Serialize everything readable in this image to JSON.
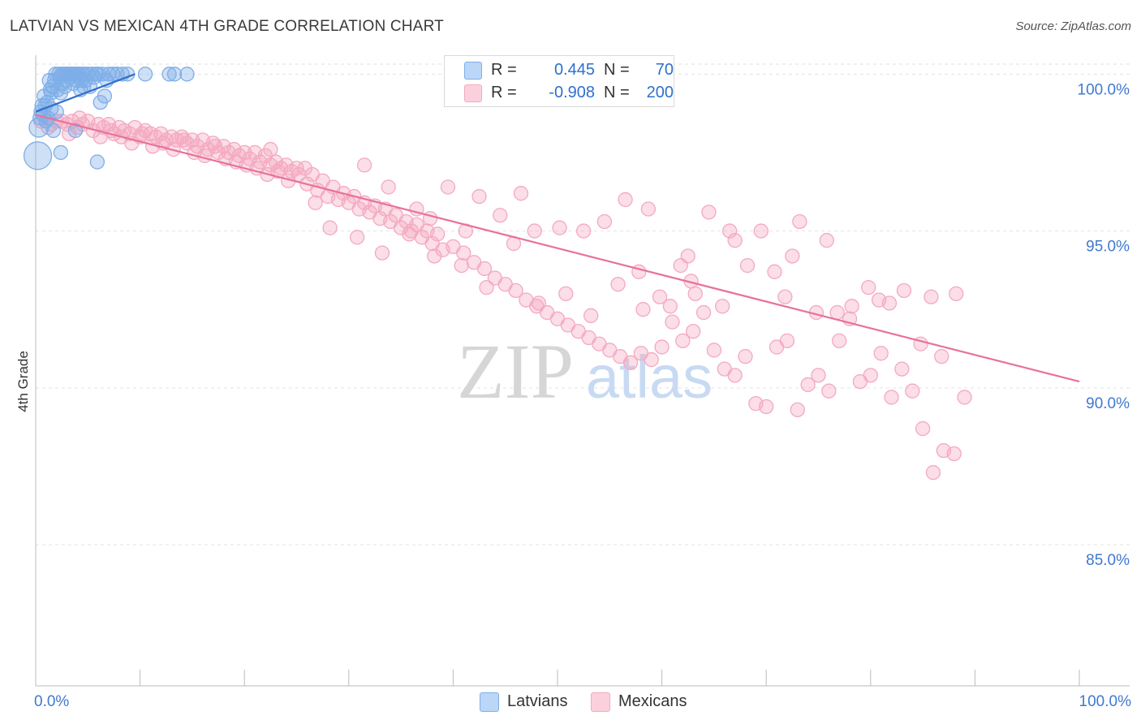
{
  "title": "LATVIAN VS MEXICAN 4TH GRADE CORRELATION CHART",
  "source": "Source: ZipAtlas.com",
  "watermark": {
    "zip": "ZIP",
    "atlas": "atlas"
  },
  "legend": {
    "rows": [
      {
        "r_label": "R =",
        "r_value": "0.445",
        "n_label": "N =",
        "n_value": "70",
        "color": "#7eaee8",
        "fill": "#bcd6f7",
        "text_color": "#2f6fcc"
      },
      {
        "r_label": "R =",
        "r_value": "-0.908",
        "n_label": "N =",
        "n_value": "200",
        "color": "#f4a9c0",
        "fill": "#fbd0dc",
        "text_color": "#2f6fcc"
      }
    ]
  },
  "chart_data": {
    "type": "scatter",
    "title": "LATVIAN VS MEXICAN 4TH GRADE CORRELATION CHART",
    "ylabel": "4th Grade",
    "xlabel": "",
    "xlim": [
      0,
      100
    ],
    "ylim": [
      80.5,
      100.5
    ],
    "x_tick_labels": [
      "0.0%",
      "100.0%"
    ],
    "y_ticks": [
      85,
      90,
      95,
      100
    ],
    "y_tick_labels": [
      "85.0%",
      "90.0%",
      "95.0%",
      "100.0%"
    ],
    "grid": true,
    "legend_position": "top-center",
    "series": [
      {
        "name": "Latvians",
        "color": "#7eaee8",
        "line_color": "#2f6fcc",
        "trend": {
          "x": [
            0,
            9.5
          ],
          "y": [
            98.8,
            100.0
          ]
        },
        "points": [
          [
            0.2,
            97.4,
            20
          ],
          [
            0.3,
            98.3,
            14
          ],
          [
            0.4,
            98.6,
            10
          ],
          [
            0.5,
            98.8,
            10
          ],
          [
            0.6,
            99.0,
            10
          ],
          [
            0.7,
            98.7,
            10
          ],
          [
            0.8,
            99.3,
            10
          ],
          [
            1.0,
            98.5,
            10
          ],
          [
            1.1,
            99.1,
            10
          ],
          [
            1.2,
            98.6,
            10
          ],
          [
            1.3,
            99.8,
            10
          ],
          [
            1.4,
            99.5,
            10
          ],
          [
            1.5,
            98.9,
            10
          ],
          [
            1.6,
            99.6,
            10
          ],
          [
            1.7,
            98.2,
            10
          ],
          [
            1.8,
            99.8,
            10
          ],
          [
            1.9,
            100.0,
            10
          ],
          [
            2.0,
            98.8,
            10
          ],
          [
            2.1,
            99.5,
            10
          ],
          [
            2.2,
            100.0,
            10
          ],
          [
            2.3,
            99.9,
            10
          ],
          [
            2.4,
            99.4,
            10
          ],
          [
            2.5,
            100.0,
            10
          ],
          [
            2.6,
            99.7,
            10
          ],
          [
            2.7,
            100.0,
            10
          ],
          [
            2.8,
            99.6,
            10
          ],
          [
            2.9,
            100.0,
            10
          ],
          [
            3.0,
            99.8,
            10
          ],
          [
            3.1,
            100.0,
            10
          ],
          [
            3.2,
            100.0,
            10
          ],
          [
            3.3,
            99.9,
            10
          ],
          [
            3.4,
            100.0,
            10
          ],
          [
            3.5,
            100.0,
            10
          ],
          [
            3.6,
            99.7,
            10
          ],
          [
            3.7,
            100.0,
            10
          ],
          [
            3.8,
            100.0,
            10
          ],
          [
            3.9,
            99.8,
            10
          ],
          [
            4.0,
            100.0,
            10
          ],
          [
            4.1,
            99.9,
            10
          ],
          [
            4.2,
            100.0,
            10
          ],
          [
            4.3,
            99.5,
            10
          ],
          [
            4.4,
            99.8,
            10
          ],
          [
            4.5,
            100.0,
            10
          ],
          [
            4.6,
            99.6,
            10
          ],
          [
            4.7,
            100.0,
            10
          ],
          [
            4.8,
            99.8,
            10
          ],
          [
            5.0,
            100.0,
            10
          ],
          [
            5.2,
            99.6,
            10
          ],
          [
            5.4,
            100.0,
            10
          ],
          [
            5.6,
            99.9,
            10
          ],
          [
            5.8,
            100.0,
            10
          ],
          [
            6.0,
            100.0,
            10
          ],
          [
            6.2,
            99.1,
            10
          ],
          [
            6.4,
            100.0,
            10
          ],
          [
            6.6,
            99.3,
            10
          ],
          [
            6.8,
            99.8,
            10
          ],
          [
            7.0,
            100.0,
            10
          ],
          [
            7.4,
            100.0,
            10
          ],
          [
            7.8,
            100.0,
            10
          ],
          [
            8.3,
            100.0,
            10
          ],
          [
            8.8,
            100.0,
            10
          ],
          [
            10.5,
            100.0,
            10
          ],
          [
            12.8,
            100.0,
            10
          ],
          [
            13.3,
            100.0,
            10
          ],
          [
            14.5,
            100.0,
            10
          ],
          [
            2.4,
            97.5,
            10
          ],
          [
            3.8,
            98.2,
            10
          ],
          [
            5.9,
            97.2,
            10
          ],
          [
            0.9,
            99.0,
            10
          ],
          [
            1.5,
            99.4,
            10
          ]
        ]
      },
      {
        "name": "Mexicans",
        "color": "#f4a9c0",
        "line_color": "#e8719a",
        "trend": {
          "x": [
            0,
            100
          ],
          "y": [
            98.7,
            90.2
          ]
        },
        "points": [
          [
            0.5,
            98.5
          ],
          [
            1.0,
            98.5
          ],
          [
            1.5,
            98.4
          ],
          [
            2.0,
            98.5
          ],
          [
            2.5,
            98.5
          ],
          [
            3.0,
            98.4
          ],
          [
            3.5,
            98.5
          ],
          [
            4.0,
            98.3
          ],
          [
            4.5,
            98.4
          ],
          [
            5.0,
            98.5
          ],
          [
            5.5,
            98.2
          ],
          [
            6.0,
            98.4
          ],
          [
            6.5,
            98.3
          ],
          [
            7.0,
            98.4
          ],
          [
            7.5,
            98.1
          ],
          [
            8.0,
            98.3
          ],
          [
            8.5,
            98.2
          ],
          [
            9.0,
            98.1
          ],
          [
            9.5,
            98.3
          ],
          [
            10.0,
            98.0
          ],
          [
            10.5,
            98.2
          ],
          [
            11.0,
            98.1
          ],
          [
            11.5,
            98.0
          ],
          [
            12.0,
            98.1
          ],
          [
            12.5,
            97.9
          ],
          [
            13.0,
            98.0
          ],
          [
            13.5,
            97.9
          ],
          [
            14.0,
            98.0
          ],
          [
            14.5,
            97.8
          ],
          [
            15.0,
            97.9
          ],
          [
            15.5,
            97.7
          ],
          [
            16.0,
            97.9
          ],
          [
            16.5,
            97.6
          ],
          [
            17.0,
            97.8
          ],
          [
            17.5,
            97.5
          ],
          [
            18.0,
            97.7
          ],
          [
            18.5,
            97.5
          ],
          [
            19.0,
            97.6
          ],
          [
            19.5,
            97.4
          ],
          [
            20.0,
            97.5
          ],
          [
            20.5,
            97.3
          ],
          [
            21.0,
            97.5
          ],
          [
            21.5,
            97.2
          ],
          [
            22.0,
            97.4
          ],
          [
            22.5,
            97.1
          ],
          [
            23.0,
            97.2
          ],
          [
            23.5,
            97.0
          ],
          [
            24.0,
            97.1
          ],
          [
            24.5,
            96.9
          ],
          [
            25.0,
            97.0
          ],
          [
            1.2,
            98.3
          ],
          [
            3.2,
            98.1
          ],
          [
            4.2,
            98.6
          ],
          [
            6.2,
            98.0
          ],
          [
            7.2,
            98.2
          ],
          [
            8.2,
            98.0
          ],
          [
            9.2,
            97.8
          ],
          [
            10.2,
            98.1
          ],
          [
            11.2,
            97.7
          ],
          [
            12.2,
            97.8
          ],
          [
            13.2,
            97.6
          ],
          [
            14.2,
            97.9
          ],
          [
            15.2,
            97.5
          ],
          [
            16.2,
            97.4
          ],
          [
            17.2,
            97.7
          ],
          [
            18.2,
            97.3
          ],
          [
            19.2,
            97.2
          ],
          [
            20.2,
            97.1
          ],
          [
            21.2,
            97.0
          ],
          [
            22.2,
            96.8
          ],
          [
            23.2,
            96.9
          ],
          [
            24.2,
            96.6
          ],
          [
            25.2,
            96.8
          ],
          [
            26.0,
            96.5
          ],
          [
            26.5,
            96.8
          ],
          [
            27.0,
            96.3
          ],
          [
            27.5,
            96.6
          ],
          [
            28.0,
            96.1
          ],
          [
            28.5,
            96.4
          ],
          [
            29.0,
            96.0
          ],
          [
            29.5,
            96.2
          ],
          [
            30.0,
            95.9
          ],
          [
            30.5,
            96.1
          ],
          [
            31.0,
            95.7
          ],
          [
            31.5,
            95.9
          ],
          [
            32.0,
            95.6
          ],
          [
            32.5,
            95.8
          ],
          [
            33.0,
            95.4
          ],
          [
            33.5,
            95.7
          ],
          [
            34.0,
            95.3
          ],
          [
            34.5,
            95.5
          ],
          [
            35.0,
            95.1
          ],
          [
            35.5,
            95.3
          ],
          [
            36.0,
            95.0
          ],
          [
            36.5,
            95.2
          ],
          [
            37.0,
            94.8
          ],
          [
            37.5,
            95.0
          ],
          [
            38.0,
            94.6
          ],
          [
            38.5,
            94.9
          ],
          [
            39.0,
            94.4
          ],
          [
            40.0,
            94.5
          ],
          [
            41.0,
            94.3
          ],
          [
            42.0,
            94.0
          ],
          [
            43.0,
            93.8
          ],
          [
            44.0,
            93.5
          ],
          [
            45.0,
            93.3
          ],
          [
            46.0,
            93.1
          ],
          [
            47.0,
            92.8
          ],
          [
            48.0,
            92.6
          ],
          [
            49.0,
            92.4
          ],
          [
            50.0,
            92.2
          ],
          [
            51.0,
            92.0
          ],
          [
            52.0,
            91.8
          ],
          [
            53.0,
            91.6
          ],
          [
            54.0,
            91.4
          ],
          [
            55.0,
            91.2
          ],
          [
            56.0,
            91.0
          ],
          [
            57.0,
            90.8
          ],
          [
            58.0,
            91.1
          ],
          [
            59.0,
            90.9
          ],
          [
            60.0,
            91.3
          ],
          [
            61.0,
            92.1
          ],
          [
            62.0,
            91.5
          ],
          [
            63.0,
            91.8
          ],
          [
            64.0,
            92.4
          ],
          [
            65.0,
            91.2
          ],
          [
            66.0,
            90.6
          ],
          [
            67.0,
            90.4
          ],
          [
            68.0,
            91.0
          ],
          [
            69.0,
            89.5
          ],
          [
            70.0,
            89.4
          ],
          [
            71.0,
            91.3
          ],
          [
            72.0,
            91.5
          ],
          [
            73.0,
            89.3
          ],
          [
            74.0,
            90.1
          ],
          [
            75.0,
            90.4
          ],
          [
            76.0,
            89.9
          ],
          [
            77.0,
            91.5
          ],
          [
            78.0,
            92.2
          ],
          [
            79.0,
            90.2
          ],
          [
            80.0,
            90.4
          ],
          [
            81.0,
            91.1
          ],
          [
            82.0,
            89.7
          ],
          [
            83.0,
            90.6
          ],
          [
            84.0,
            89.9
          ],
          [
            85.0,
            88.7
          ],
          [
            86.0,
            87.3
          ],
          [
            87.0,
            88.0
          ],
          [
            88.0,
            87.9
          ],
          [
            89.0,
            89.7
          ],
          [
            26.8,
            95.9
          ],
          [
            28.2,
            95.1
          ],
          [
            30.8,
            94.8
          ],
          [
            33.2,
            94.3
          ],
          [
            35.8,
            94.9
          ],
          [
            38.2,
            94.2
          ],
          [
            40.8,
            93.9
          ],
          [
            43.2,
            93.2
          ],
          [
            45.8,
            94.6
          ],
          [
            48.2,
            92.7
          ],
          [
            50.8,
            93.0
          ],
          [
            53.2,
            92.3
          ],
          [
            55.8,
            93.3
          ],
          [
            58.2,
            92.5
          ],
          [
            60.8,
            92.6
          ],
          [
            63.2,
            93.0
          ],
          [
            65.8,
            92.6
          ],
          [
            68.2,
            93.9
          ],
          [
            70.8,
            93.7
          ],
          [
            73.2,
            95.3
          ],
          [
            75.8,
            94.7
          ],
          [
            78.2,
            92.6
          ],
          [
            80.8,
            92.8
          ],
          [
            83.2,
            93.1
          ],
          [
            85.8,
            92.9
          ],
          [
            88.2,
            93.0
          ],
          [
            69.5,
            95.0
          ],
          [
            72.5,
            94.2
          ],
          [
            62.5,
            94.2
          ],
          [
            67.0,
            94.7
          ],
          [
            42.5,
            96.1
          ],
          [
            46.5,
            96.2
          ],
          [
            52.5,
            95.0
          ],
          [
            54.5,
            95.3
          ],
          [
            56.5,
            96.0
          ],
          [
            58.7,
            95.7
          ],
          [
            64.5,
            95.6
          ],
          [
            66.5,
            95.0
          ],
          [
            39.5,
            96.4
          ],
          [
            36.5,
            95.7
          ],
          [
            22.5,
            97.6
          ],
          [
            25.8,
            97.0
          ],
          [
            31.5,
            97.1
          ],
          [
            33.8,
            96.4
          ],
          [
            37.8,
            95.4
          ],
          [
            41.2,
            95.0
          ],
          [
            44.5,
            95.5
          ],
          [
            47.8,
            95.0
          ],
          [
            50.2,
            95.1
          ],
          [
            57.8,
            93.7
          ],
          [
            59.8,
            92.9
          ],
          [
            61.8,
            93.9
          ],
          [
            62.8,
            93.4
          ],
          [
            71.8,
            92.9
          ],
          [
            74.8,
            92.4
          ],
          [
            76.8,
            92.4
          ],
          [
            79.8,
            93.2
          ],
          [
            81.8,
            92.7
          ],
          [
            84.8,
            91.4
          ],
          [
            86.8,
            91.0
          ]
        ]
      }
    ]
  },
  "bottom_legend": [
    {
      "label": "Latvians",
      "color": "#7eaee8",
      "fill": "#bcd6f7"
    },
    {
      "label": "Mexicans",
      "color": "#f4a9c0",
      "fill": "#fbd0dc"
    }
  ]
}
